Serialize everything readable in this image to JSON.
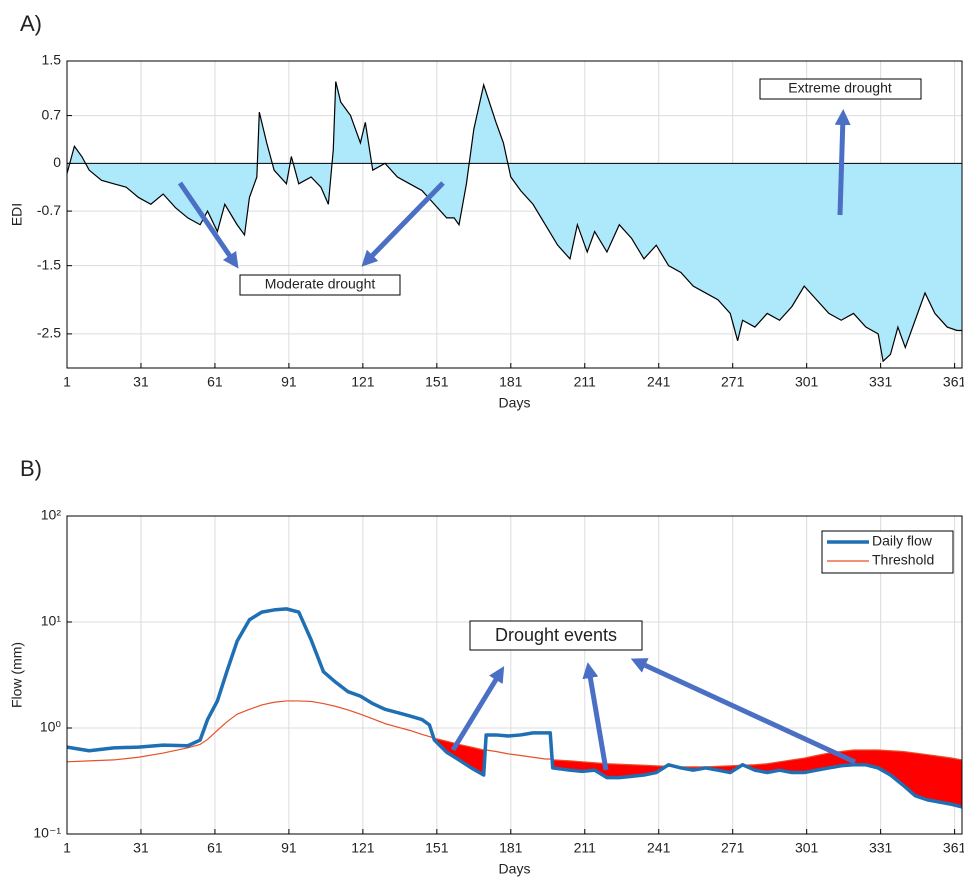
{
  "chart_data": [
    {
      "type": "area",
      "panel_label": "A)",
      "x_label": "Days",
      "y_label": "EDI",
      "annotations": [
        "Moderate drought",
        "Extreme drought"
      ],
      "color": "#aee9fb",
      "line_color": "#000000",
      "grid": true,
      "xlim": [
        1,
        364
      ],
      "xticks": [
        1,
        31,
        61,
        91,
        121,
        151,
        181,
        211,
        241,
        271,
        301,
        331,
        361
      ],
      "ylim": [
        -3,
        1.5
      ],
      "yticks": [
        1.5,
        0.7,
        0,
        -0.7,
        -1.5,
        -2.5
      ],
      "x": [
        1,
        4,
        7,
        10,
        15,
        20,
        25,
        30,
        35,
        40,
        45,
        50,
        55,
        58,
        62,
        65,
        70,
        73,
        75,
        78,
        79,
        82,
        85,
        90,
        92,
        95,
        100,
        104,
        107,
        109,
        110,
        112,
        116,
        120,
        122,
        125,
        130,
        135,
        140,
        145,
        150,
        155,
        158,
        160,
        163,
        166,
        170,
        175,
        178,
        181,
        185,
        190,
        195,
        200,
        205,
        208,
        212,
        215,
        220,
        225,
        230,
        235,
        240,
        245,
        250,
        255,
        260,
        265,
        270,
        273,
        275,
        280,
        285,
        290,
        295,
        300,
        305,
        310,
        315,
        320,
        325,
        330,
        332,
        335,
        338,
        341,
        345,
        349,
        353,
        358,
        362,
        364
      ],
      "values": [
        -0.15,
        0.25,
        0.1,
        -0.1,
        -0.25,
        -0.3,
        -0.35,
        -0.5,
        -0.6,
        -0.45,
        -0.65,
        -0.8,
        -0.9,
        -0.7,
        -1.0,
        -0.6,
        -0.9,
        -1.05,
        -0.5,
        -0.2,
        0.75,
        0.3,
        -0.1,
        -0.3,
        0.1,
        -0.3,
        -0.2,
        -0.35,
        -0.6,
        0.2,
        1.2,
        0.9,
        0.7,
        0.3,
        0.6,
        -0.1,
        0.0,
        -0.2,
        -0.3,
        -0.4,
        -0.6,
        -0.8,
        -0.8,
        -0.9,
        -0.3,
        0.5,
        1.15,
        0.6,
        0.3,
        -0.2,
        -0.4,
        -0.6,
        -0.9,
        -1.2,
        -1.4,
        -0.9,
        -1.3,
        -1.0,
        -1.3,
        -0.9,
        -1.1,
        -1.4,
        -1.2,
        -1.5,
        -1.6,
        -1.8,
        -1.9,
        -2.0,
        -2.2,
        -2.6,
        -2.3,
        -2.4,
        -2.2,
        -2.3,
        -2.1,
        -1.8,
        -2.0,
        -2.2,
        -2.3,
        -2.2,
        -2.4,
        -2.5,
        -2.9,
        -2.8,
        -2.4,
        -2.7,
        -2.3,
        -1.9,
        -2.2,
        -2.4,
        -2.45,
        -2.45
      ]
    },
    {
      "type": "line",
      "panel_label": "B)",
      "x_label": "Days",
      "y_label": "Flow (mm)",
      "annotations": [
        "Drought events"
      ],
      "yscale": "log",
      "grid": true,
      "legend": "upper right",
      "fill_color": "#ff0000",
      "xlim": [
        1,
        364
      ],
      "xticks": [
        1,
        31,
        61,
        91,
        121,
        151,
        181,
        211,
        241,
        271,
        301,
        331,
        361
      ],
      "ylim": [
        0.1,
        100
      ],
      "yticks": [
        {
          "value": 0.1,
          "label": "10⁻¹"
        },
        {
          "value": 1,
          "label": "10⁰"
        },
        {
          "value": 10,
          "label": "10¹"
        },
        {
          "value": 100,
          "label": "10²"
        }
      ],
      "x": [
        1,
        10,
        20,
        30,
        40,
        50,
        55,
        58,
        62,
        66,
        70,
        75,
        80,
        85,
        90,
        95,
        100,
        105,
        110,
        115,
        120,
        125,
        130,
        135,
        140,
        145,
        148,
        150,
        155,
        160,
        165,
        170,
        171,
        175,
        180,
        185,
        190,
        195,
        197,
        198,
        205,
        210,
        215,
        220,
        225,
        230,
        235,
        240,
        245,
        250,
        255,
        260,
        265,
        270,
        275,
        280,
        285,
        290,
        295,
        300,
        305,
        310,
        315,
        320,
        325,
        330,
        335,
        340,
        345,
        350,
        355,
        360,
        364
      ],
      "series": [
        {
          "name": "Daily flow",
          "color": "#1f6fb4",
          "width": 3.5,
          "values": [
            0.66,
            0.61,
            0.65,
            0.66,
            0.69,
            0.68,
            0.77,
            1.2,
            1.8,
            3.5,
            6.6,
            10.5,
            12.4,
            13,
            13.3,
            12.4,
            6.8,
            3.4,
            2.7,
            2.2,
            2.0,
            1.7,
            1.5,
            1.4,
            1.3,
            1.2,
            1.07,
            0.77,
            0.59,
            0.5,
            0.42,
            0.36,
            0.86,
            0.86,
            0.84,
            0.86,
            0.9,
            0.9,
            0.9,
            0.42,
            0.4,
            0.39,
            0.4,
            0.34,
            0.34,
            0.35,
            0.36,
            0.38,
            0.45,
            0.42,
            0.4,
            0.42,
            0.4,
            0.38,
            0.45,
            0.4,
            0.38,
            0.4,
            0.38,
            0.38,
            0.4,
            0.42,
            0.44,
            0.45,
            0.45,
            0.42,
            0.36,
            0.29,
            0.23,
            0.21,
            0.2,
            0.19,
            0.18
          ]
        },
        {
          "name": "Threshold",
          "color": "#e8502a",
          "width": 1.2,
          "values": [
            0.48,
            0.49,
            0.5,
            0.53,
            0.58,
            0.65,
            0.7,
            0.78,
            0.95,
            1.15,
            1.35,
            1.5,
            1.65,
            1.75,
            1.8,
            1.8,
            1.78,
            1.7,
            1.6,
            1.48,
            1.35,
            1.22,
            1.1,
            1.02,
            0.95,
            0.87,
            0.83,
            0.8,
            0.75,
            0.7,
            0.66,
            0.62,
            0.62,
            0.6,
            0.57,
            0.55,
            0.53,
            0.51,
            0.51,
            0.5,
            0.49,
            0.48,
            0.47,
            0.46,
            0.455,
            0.45,
            0.445,
            0.44,
            0.435,
            0.43,
            0.43,
            0.43,
            0.435,
            0.44,
            0.445,
            0.45,
            0.46,
            0.48,
            0.5,
            0.52,
            0.55,
            0.58,
            0.6,
            0.62,
            0.62,
            0.62,
            0.61,
            0.6,
            0.58,
            0.56,
            0.54,
            0.52,
            0.5
          ]
        }
      ]
    }
  ]
}
